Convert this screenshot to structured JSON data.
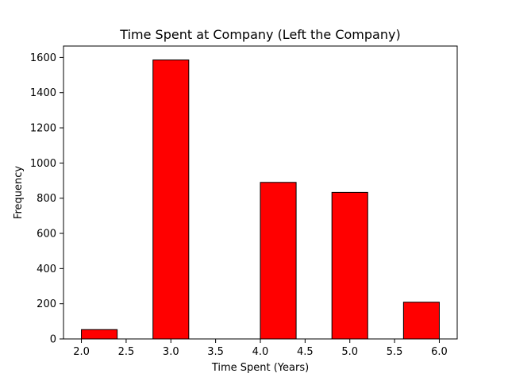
{
  "chart_data": {
    "type": "bar",
    "title": "Time Spent at Company (Left the Company)",
    "xlabel": "Time Spent (Years)",
    "ylabel": "Frequency",
    "bin_width": 0.4,
    "bins": [
      {
        "x_start": 2.0,
        "x_end": 2.4,
        "value": 53
      },
      {
        "x_start": 2.8,
        "x_end": 3.2,
        "value": 1586
      },
      {
        "x_start": 4.0,
        "x_end": 4.4,
        "value": 890
      },
      {
        "x_start": 4.8,
        "x_end": 5.2,
        "value": 833
      },
      {
        "x_start": 5.6,
        "x_end": 6.0,
        "value": 209
      }
    ],
    "x_ticks": [
      "2.0",
      "2.5",
      "3.0",
      "3.5",
      "4.0",
      "4.5",
      "5.0",
      "5.5",
      "6.0"
    ],
    "y_ticks": [
      "0",
      "200",
      "400",
      "600",
      "800",
      "1000",
      "1200",
      "1400",
      "1600"
    ],
    "xlim": [
      1.8,
      6.2
    ],
    "ylim": [
      0,
      1665
    ],
    "bar_color": "#ff0000",
    "edge_color": "#000000",
    "grid": false,
    "legend": "none"
  }
}
